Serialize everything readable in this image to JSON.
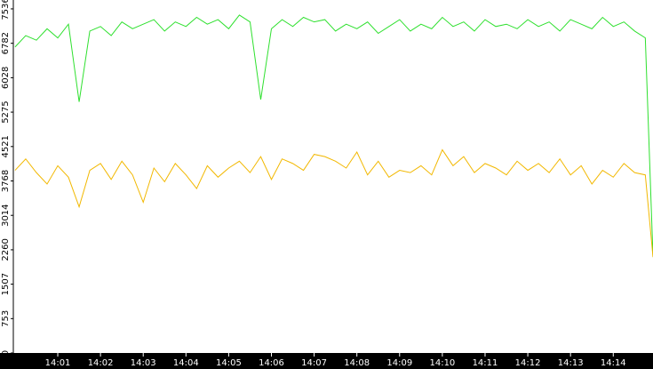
{
  "chart_data": {
    "type": "line",
    "x": [
      0,
      0.25,
      0.5,
      0.75,
      1,
      1.25,
      1.5,
      1.75,
      2,
      2.25,
      2.5,
      2.75,
      3,
      3.25,
      3.5,
      3.75,
      4,
      4.25,
      4.5,
      4.75,
      5,
      5.25,
      5.5,
      5.75,
      6,
      6.25,
      6.5,
      6.75,
      7,
      7.25,
      7.5,
      7.75,
      8,
      8.25,
      8.5,
      8.75,
      9,
      9.25,
      9.5,
      9.75,
      10,
      10.25,
      10.5,
      10.75,
      11,
      11.25,
      11.5,
      11.75,
      12,
      12.25,
      12.5,
      12.75,
      13,
      13.25,
      13.5,
      13.75,
      14,
      14.25,
      14.5,
      14.75,
      14.93
    ],
    "series": [
      {
        "color": "#2ee02e",
        "values": [
          6700,
          6950,
          6850,
          7100,
          6900,
          7200,
          5500,
          7050,
          7150,
          6950,
          7250,
          7100,
          7200,
          7300,
          7050,
          7250,
          7150,
          7350,
          7200,
          7300,
          7100,
          7400,
          7250,
          5550,
          7100,
          7300,
          7150,
          7350,
          7250,
          7300,
          7050,
          7200,
          7100,
          7250,
          7000,
          7150,
          7300,
          7050,
          7200,
          7100,
          7350,
          7150,
          7250,
          7050,
          7300,
          7150,
          7200,
          7100,
          7300,
          7150,
          7250,
          7050,
          7300,
          7200,
          7100,
          7350,
          7150,
          7250,
          7050,
          6900,
          2100
        ]
      },
      {
        "color": "#f2b800",
        "values": [
          4000,
          4250,
          3950,
          3700,
          4100,
          3850,
          3200,
          4000,
          4150,
          3800,
          4200,
          3900,
          3300,
          4050,
          3750,
          4150,
          3900,
          3600,
          4100,
          3850,
          4050,
          4200,
          3950,
          4300,
          3800,
          4250,
          4150,
          4000,
          4350,
          4300,
          4200,
          4050,
          4400,
          3900,
          4200,
          3850,
          4000,
          3950,
          4100,
          3900,
          4450,
          4100,
          4300,
          3950,
          4150,
          4050,
          3900,
          4200,
          4000,
          4150,
          3950,
          4250,
          3900,
          4100,
          3700,
          4000,
          3850,
          4150,
          3950,
          3900,
          2100
        ]
      }
    ],
    "xlim": [
      -0.04,
      14.93
    ],
    "xticks": [
      {
        "value": 1,
        "label": "14:01"
      },
      {
        "value": 2,
        "label": "14:02"
      },
      {
        "value": 3,
        "label": "14:03"
      },
      {
        "value": 4,
        "label": "14:04"
      },
      {
        "value": 5,
        "label": "14:05"
      },
      {
        "value": 6,
        "label": "14:06"
      },
      {
        "value": 7,
        "label": "14:07"
      },
      {
        "value": 8,
        "label": "14:08"
      },
      {
        "value": 9,
        "label": "14:09"
      },
      {
        "value": 10,
        "label": "14:10"
      },
      {
        "value": 11,
        "label": "14:11"
      },
      {
        "value": 12,
        "label": "14:12"
      },
      {
        "value": 13,
        "label": "14:13"
      },
      {
        "value": 14,
        "label": "14:14"
      }
    ],
    "ylim": [
      0,
      7730
    ],
    "yticks": [
      0,
      753,
      1507,
      2260,
      3014,
      3768,
      4521,
      5275,
      6028,
      6782,
      7536
    ]
  }
}
